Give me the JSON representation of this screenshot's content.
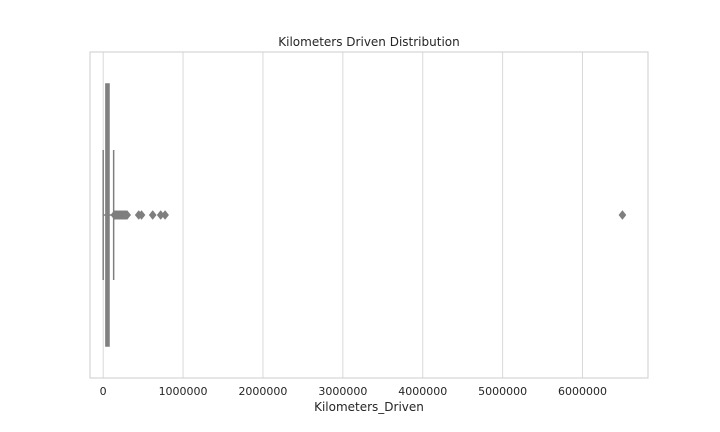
{
  "chart_data": {
    "type": "box",
    "title": "Kilometers Driven Distribution",
    "xlabel": "Kilometers_Driven",
    "ylabel": "",
    "orientation": "horizontal",
    "xlim": [
      -165000,
      6820000
    ],
    "xticks": [
      0,
      1000000,
      2000000,
      3000000,
      4000000,
      5000000,
      6000000
    ],
    "xtick_labels": [
      "0",
      "1000000",
      "2000000",
      "3000000",
      "4000000",
      "5000000",
      "6000000"
    ],
    "grid": "vertical",
    "legend": "none",
    "box": {
      "q1": 34000,
      "median": 53000,
      "q3": 73000,
      "whisker_low": 171,
      "whisker_high": 131000
    },
    "outliers": [
      140000,
      150000,
      160000,
      170000,
      180000,
      190000,
      200000,
      210000,
      220000,
      230000,
      240000,
      250000,
      260000,
      270000,
      280000,
      290000,
      300000,
      445000,
      480000,
      620000,
      720000,
      775000,
      6500000
    ],
    "colors": {
      "box_fill": "#8c8c8c",
      "line": "#7f7f7f",
      "grid": "#d9d9d9",
      "frame": "#cccccc"
    }
  }
}
